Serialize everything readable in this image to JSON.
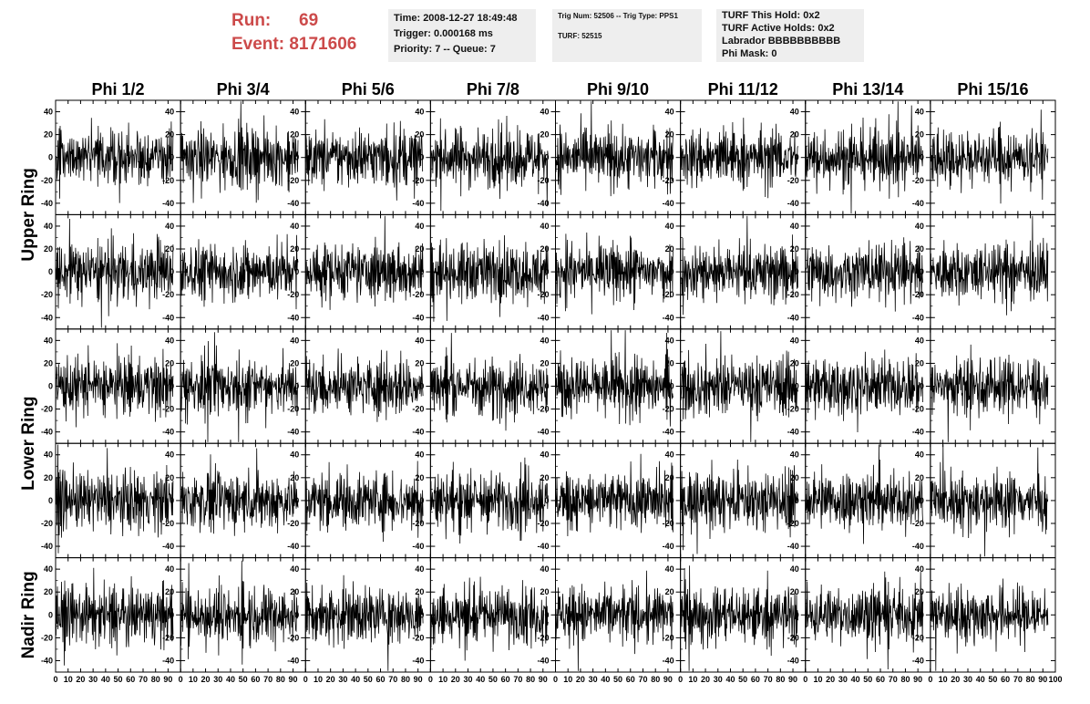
{
  "header": {
    "run_label": "Run:",
    "run_value": "69",
    "event_label": "Event:",
    "event_value": "8171606",
    "info1": [
      "Time: 2008-12-27 18:49:48",
      "Trigger: 0.000168 ms",
      "Priority: 7 -- Queue: 7"
    ],
    "info2": [
      "Trig Num: 52506 -- Trig Type: PPS1",
      "",
      "TURF: 52515"
    ],
    "info3": [
      "TURF This Hold: 0x2",
      "TURF Active Holds: 0x2",
      "Labrador BBBBBBBBBB",
      "Phi Mask: 0"
    ]
  },
  "colors": {
    "title": "#cc4a4a",
    "box": "#eeeeee",
    "trace": "#000000"
  },
  "chart_data": {
    "type": "line",
    "columns": [
      "Phi 1/2",
      "Phi 3/4",
      "Phi 5/6",
      "Phi 7/8",
      "Phi 9/10",
      "Phi 11/12",
      "Phi 13/14",
      "Phi 15/16"
    ],
    "ring_labels": [
      {
        "label": "Upper Ring",
        "rows": [
          0,
          1
        ]
      },
      {
        "label": "Lower Ring",
        "rows": [
          2,
          3
        ]
      },
      {
        "label": "Nadir Ring",
        "rows": [
          4
        ]
      }
    ],
    "rows": 5,
    "xlim": [
      0,
      100
    ],
    "ylim": [
      -50,
      50
    ],
    "y_ticks": [
      -40,
      -20,
      0,
      20,
      40
    ],
    "x_ticks": [
      0,
      10,
      20,
      30,
      40,
      50,
      60,
      70,
      80,
      90,
      100
    ],
    "x_tick_labels": [
      "0",
      "10",
      "20",
      "30",
      "40",
      "50",
      "60",
      "70",
      "80",
      "90",
      "100"
    ],
    "samples_per_trace": 260,
    "x_trace_max": 94,
    "typical_amplitude": 15
  }
}
